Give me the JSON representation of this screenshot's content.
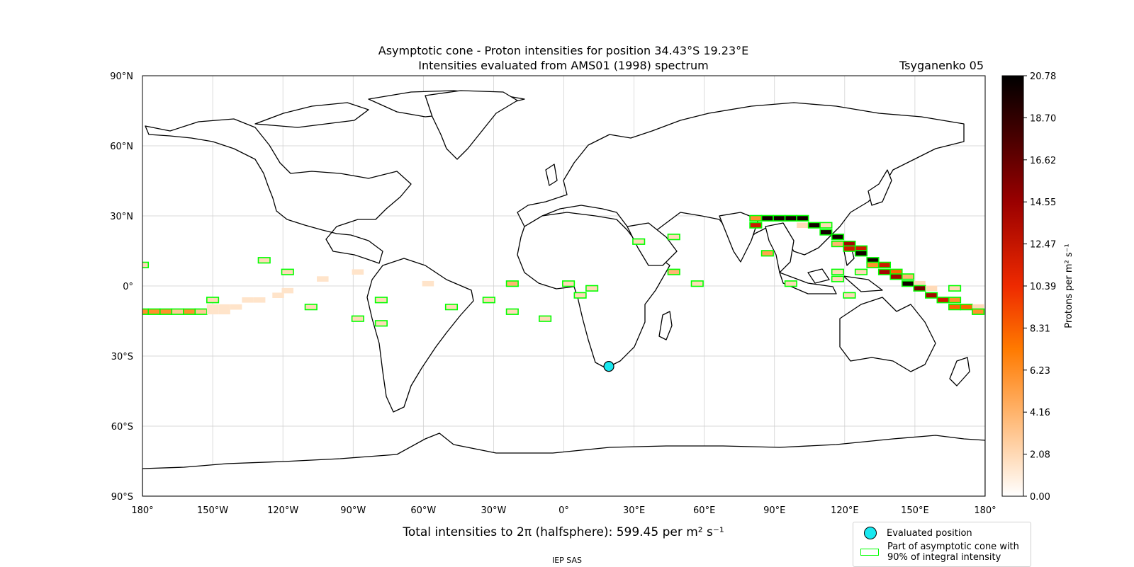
{
  "title_line1": "Asymptotic cone - Proton intensities for position 34.43°S 19.23°E",
  "title_line2": "Intensities evaluated from AMS01 (1998) spectrum",
  "model": "Tsyganenko 05",
  "total_text": "Total intensities to 2π (halfsphere): 599.45 per m² s⁻¹",
  "credit": "IEP SAS",
  "lat_ticks": [
    "90°N",
    "60°N",
    "30°N",
    "0°",
    "30°S",
    "60°S",
    "90°S"
  ],
  "lon_ticks": [
    "180°",
    "150°W",
    "120°W",
    "90°W",
    "60°W",
    "30°W",
    "0°",
    "30°E",
    "60°E",
    "90°E",
    "120°E",
    "150°E",
    "180°"
  ],
  "colorbar": {
    "label": "Protons per m² s⁻¹",
    "ticks": [
      "0.00",
      "2.08",
      "4.16",
      "6.23",
      "8.31",
      "10.39",
      "12.47",
      "14.55",
      "16.62",
      "18.70",
      "20.78"
    ],
    "min": 0,
    "max": 20.78
  },
  "legend": {
    "evaluated": "Evaluated position",
    "cone_line1": "Part of asymptotic cone with",
    "cone_line2": "90% of integral intensity"
  },
  "colors": {
    "highlight": "#00ff00",
    "marker": "#19e8f0",
    "grid": "#cccccc"
  },
  "evaluated_position": {
    "lat": -34.43,
    "lon": 19.23
  },
  "cells": [
    {
      "lon": -180,
      "lat": -11,
      "v": 6,
      "hl": true
    },
    {
      "lon": -175,
      "lat": -11,
      "v": 6,
      "hl": true
    },
    {
      "lon": -170,
      "lat": -11,
      "v": 6,
      "hl": true
    },
    {
      "lon": -165,
      "lat": -11,
      "v": 3,
      "hl": true
    },
    {
      "lon": -160,
      "lat": -11,
      "v": 6,
      "hl": true
    },
    {
      "lon": -155,
      "lat": -11,
      "v": 3,
      "hl": true
    },
    {
      "lon": -150,
      "lat": -11,
      "v": 1.5,
      "hl": false
    },
    {
      "lon": -145,
      "lat": -11,
      "v": 1.5,
      "hl": false
    },
    {
      "lon": -180,
      "lat": 9,
      "v": 2,
      "hl": true
    },
    {
      "lon": -150,
      "lat": -6,
      "v": 2,
      "hl": true
    },
    {
      "lon": -150,
      "lat": -9,
      "v": 1.5,
      "hl": false
    },
    {
      "lon": -145,
      "lat": -9,
      "v": 1.5,
      "hl": false
    },
    {
      "lon": -140,
      "lat": -9,
      "v": 1.5,
      "hl": false
    },
    {
      "lon": -135,
      "lat": -6,
      "v": 1.5,
      "hl": false
    },
    {
      "lon": -130,
      "lat": -6,
      "v": 1.5,
      "hl": false
    },
    {
      "lon": -128,
      "lat": 11,
      "v": 2,
      "hl": true
    },
    {
      "lon": -122,
      "lat": -4,
      "v": 1.5,
      "hl": false
    },
    {
      "lon": -118,
      "lat": -2,
      "v": 1.5,
      "hl": false
    },
    {
      "lon": -118,
      "lat": 6,
      "v": 2,
      "hl": true
    },
    {
      "lon": -108,
      "lat": -9,
      "v": 2,
      "hl": true
    },
    {
      "lon": -103,
      "lat": 3,
      "v": 1.5,
      "hl": false
    },
    {
      "lon": -88,
      "lat": 6,
      "v": 1.5,
      "hl": false
    },
    {
      "lon": -88,
      "lat": -14,
      "v": 2,
      "hl": true
    },
    {
      "lon": -78,
      "lat": -6,
      "v": 2,
      "hl": true
    },
    {
      "lon": -78,
      "lat": -16,
      "v": 2,
      "hl": true
    },
    {
      "lon": -58,
      "lat": 1,
      "v": 1.5,
      "hl": false
    },
    {
      "lon": -48,
      "lat": -9,
      "v": 2,
      "hl": true
    },
    {
      "lon": -32,
      "lat": -6,
      "v": 2,
      "hl": true
    },
    {
      "lon": -22,
      "lat": 1,
      "v": 4,
      "hl": true
    },
    {
      "lon": -22,
      "lat": -11,
      "v": 2,
      "hl": true
    },
    {
      "lon": -8,
      "lat": -14,
      "v": 2,
      "hl": true
    },
    {
      "lon": 2,
      "lat": 1,
      "v": 2,
      "hl": true
    },
    {
      "lon": 7,
      "lat": -4,
      "v": 2,
      "hl": true
    },
    {
      "lon": 12,
      "lat": -1,
      "v": 2,
      "hl": true
    },
    {
      "lon": 32,
      "lat": 19,
      "v": 2,
      "hl": true
    },
    {
      "lon": 47,
      "lat": 21,
      "v": 2,
      "hl": true
    },
    {
      "lon": 47,
      "lat": 6,
      "v": 4,
      "hl": true
    },
    {
      "lon": 57,
      "lat": 1,
      "v": 2,
      "hl": true
    },
    {
      "lon": 82,
      "lat": 29,
      "v": 6,
      "hl": true
    },
    {
      "lon": 82,
      "lat": 26,
      "v": 12,
      "hl": true
    },
    {
      "lon": 87,
      "lat": 29,
      "v": 20,
      "hl": true
    },
    {
      "lon": 87,
      "lat": 14,
      "v": 5,
      "hl": true
    },
    {
      "lon": 92,
      "lat": 29,
      "v": 20,
      "hl": true
    },
    {
      "lon": 97,
      "lat": 29,
      "v": 20,
      "hl": true
    },
    {
      "lon": 97,
      "lat": 1,
      "v": 2,
      "hl": true
    },
    {
      "lon": 102,
      "lat": 29,
      "v": 20,
      "hl": true
    },
    {
      "lon": 102,
      "lat": 26,
      "v": 2,
      "hl": false
    },
    {
      "lon": 107,
      "lat": 26,
      "v": 20,
      "hl": true
    },
    {
      "lon": 112,
      "lat": 26,
      "v": 2,
      "hl": true
    },
    {
      "lon": 112,
      "lat": 23,
      "v": 20,
      "hl": true
    },
    {
      "lon": 117,
      "lat": 21,
      "v": 20,
      "hl": true
    },
    {
      "lon": 117,
      "lat": 18,
      "v": 4,
      "hl": true
    },
    {
      "lon": 117,
      "lat": 6,
      "v": 2,
      "hl": true
    },
    {
      "lon": 117,
      "lat": 3,
      "v": 2,
      "hl": true
    },
    {
      "lon": 122,
      "lat": 18,
      "v": 14,
      "hl": true
    },
    {
      "lon": 122,
      "lat": 16,
      "v": 12,
      "hl": true
    },
    {
      "lon": 122,
      "lat": -4,
      "v": 2,
      "hl": true
    },
    {
      "lon": 127,
      "lat": 16,
      "v": 12,
      "hl": true
    },
    {
      "lon": 127,
      "lat": 14,
      "v": 20,
      "hl": true
    },
    {
      "lon": 127,
      "lat": 6,
      "v": 2,
      "hl": true
    },
    {
      "lon": 132,
      "lat": 11,
      "v": 20,
      "hl": true
    },
    {
      "lon": 132,
      "lat": 9,
      "v": 6,
      "hl": true
    },
    {
      "lon": 137,
      "lat": 9,
      "v": 12,
      "hl": true
    },
    {
      "lon": 137,
      "lat": 6,
      "v": 14,
      "hl": true
    },
    {
      "lon": 142,
      "lat": 6,
      "v": 8,
      "hl": true
    },
    {
      "lon": 142,
      "lat": 4,
      "v": 14,
      "hl": true
    },
    {
      "lon": 147,
      "lat": 4,
      "v": 4,
      "hl": true
    },
    {
      "lon": 147,
      "lat": 1,
      "v": 20,
      "hl": true
    },
    {
      "lon": 152,
      "lat": 1,
      "v": 2,
      "hl": false
    },
    {
      "lon": 152,
      "lat": -1,
      "v": 16,
      "hl": true
    },
    {
      "lon": 157,
      "lat": -1,
      "v": 2,
      "hl": false
    },
    {
      "lon": 157,
      "lat": -4,
      "v": 14,
      "hl": true
    },
    {
      "lon": 162,
      "lat": -6,
      "v": 12,
      "hl": true
    },
    {
      "lon": 167,
      "lat": -1,
      "v": 2,
      "hl": true
    },
    {
      "lon": 167,
      "lat": -6,
      "v": 6,
      "hl": true
    },
    {
      "lon": 167,
      "lat": -9,
      "v": 8,
      "hl": true
    },
    {
      "lon": 172,
      "lat": -9,
      "v": 8,
      "hl": true
    },
    {
      "lon": 177,
      "lat": -9,
      "v": 2,
      "hl": false
    },
    {
      "lon": 177,
      "lat": -11,
      "v": 6,
      "hl": true
    }
  ]
}
